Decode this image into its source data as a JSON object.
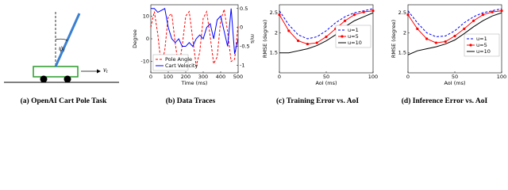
{
  "diagram": {
    "angle": "ψ",
    "angle_sub": "t",
    "velocity": "v",
    "velocity_sub": "t"
  },
  "captions": [
    "(a) OpenAI Cart Pole Task",
    "(b) Data Traces",
    "(c) Training Error vs. AoI",
    "(d) Inference Error vs. AoI"
  ],
  "chart_data": [
    {
      "type": "line",
      "xlabel": "Time (ms)",
      "ylabel": "Degree",
      "y2label": "m/s",
      "x": [
        0,
        20,
        40,
        60,
        80,
        100,
        120,
        140,
        160,
        180,
        200,
        220,
        240,
        260,
        280,
        300,
        320,
        340,
        360,
        380,
        400,
        420,
        440,
        460,
        480,
        500
      ],
      "xlim": [
        0,
        500
      ],
      "xticks": [
        0,
        100,
        200,
        300,
        400,
        500
      ],
      "ylim": [
        -15,
        15
      ],
      "yticks": [
        -10,
        0,
        10
      ],
      "y2lim": [
        -1.2,
        0.6
      ],
      "y2ticks": [
        -1,
        -0.5,
        0,
        0.5
      ],
      "legend": "lower left",
      "series": [
        {
          "name": "Pole Angle",
          "color": "#ff0000",
          "linestyle": "dashed",
          "values": [
            5,
            12,
            2,
            -12,
            -5,
            10,
            11,
            -2,
            -13,
            -3,
            10,
            12,
            0,
            -12,
            -6,
            9,
            12,
            1,
            -11,
            -8,
            8,
            13,
            3,
            -10,
            -9,
            6
          ]
        },
        {
          "name": "Cart Velocity",
          "color": "#0000ff",
          "linestyle": "solid",
          "axis": "y2",
          "values": [
            0.5,
            0.5,
            0.4,
            0.45,
            0.5,
            0.0,
            -0.3,
            -0.4,
            -0.3,
            -0.5,
            -0.5,
            -0.4,
            -0.5,
            -0.3,
            -0.2,
            -0.3,
            0.0,
            0.1,
            -0.3,
            0.2,
            0.3,
            -0.1,
            -0.5,
            0.5,
            -0.7,
            -0.3
          ]
        }
      ]
    },
    {
      "type": "line",
      "xlabel": "AoI (ms)",
      "ylabel": "RMSE (degree)",
      "x": [
        0,
        10,
        20,
        30,
        40,
        50,
        60,
        70,
        80,
        90,
        100
      ],
      "xlim": [
        0,
        100
      ],
      "xticks": [
        0,
        50,
        100
      ],
      "ylim": [
        1.0,
        2.7
      ],
      "yticks": [
        1.5,
        2,
        2.5
      ],
      "legend": "upper right",
      "series": [
        {
          "name": "u=1",
          "color": "#0000ff",
          "linestyle": "dashed",
          "values": [
            2.55,
            2.2,
            1.95,
            1.85,
            1.9,
            2.05,
            2.25,
            2.4,
            2.5,
            2.55,
            2.6
          ]
        },
        {
          "name": "u=5",
          "color": "#ff0000",
          "linestyle": "solid",
          "marker": "o",
          "values": [
            2.45,
            2.05,
            1.8,
            1.72,
            1.75,
            1.9,
            2.1,
            2.3,
            2.45,
            2.52,
            2.55
          ]
        },
        {
          "name": "u=10",
          "color": "#000000",
          "linestyle": "solid",
          "values": [
            1.5,
            1.5,
            1.55,
            1.6,
            1.68,
            1.8,
            1.95,
            2.15,
            2.3,
            2.4,
            2.5
          ]
        }
      ]
    },
    {
      "type": "line",
      "xlabel": "AoI (ms)",
      "ylabel": "RMSE (degree)",
      "x": [
        0,
        10,
        20,
        30,
        40,
        50,
        60,
        70,
        80,
        90,
        100
      ],
      "xlim": [
        0,
        100
      ],
      "xticks": [
        0,
        50,
        100
      ],
      "ylim": [
        1.0,
        2.7
      ],
      "yticks": [
        1.5,
        2,
        2.5
      ],
      "legend": "center right",
      "series": [
        {
          "name": "u=1",
          "color": "#0000ff",
          "linestyle": "dashed",
          "values": [
            2.55,
            2.25,
            2.0,
            1.9,
            1.92,
            2.05,
            2.25,
            2.4,
            2.5,
            2.55,
            2.6
          ]
        },
        {
          "name": "u=5",
          "color": "#ff0000",
          "linestyle": "solid",
          "marker": "o",
          "values": [
            2.45,
            2.1,
            1.85,
            1.75,
            1.78,
            1.92,
            2.1,
            2.3,
            2.45,
            2.52,
            2.55
          ]
        },
        {
          "name": "u=10",
          "color": "#000000",
          "linestyle": "solid",
          "values": [
            1.45,
            1.55,
            1.6,
            1.65,
            1.72,
            1.82,
            1.98,
            2.15,
            2.3,
            2.42,
            2.5
          ]
        }
      ]
    }
  ]
}
